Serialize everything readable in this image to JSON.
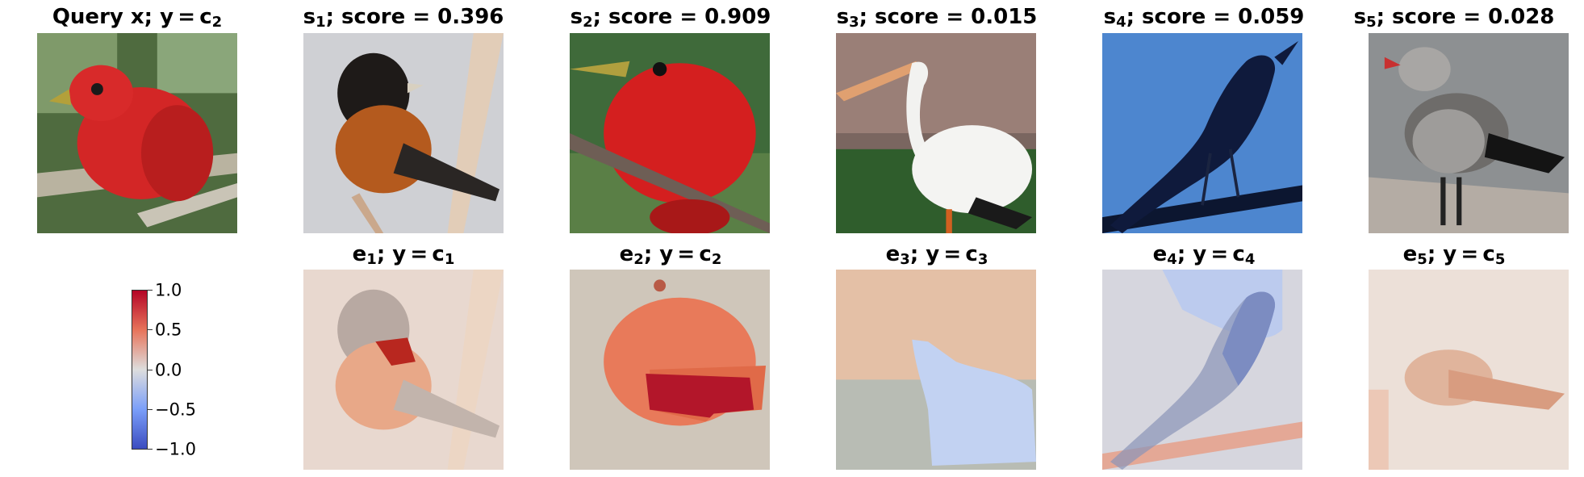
{
  "query": {
    "title_main": "Query x; y = c",
    "title_sub": "2"
  },
  "samples": [
    {
      "label": "s",
      "sub": "1",
      "score_text": "; score = 0.396",
      "score": 0.396,
      "subject": "black-orange oriole"
    },
    {
      "label": "s",
      "sub": "2",
      "score_text": "; score = 0.909",
      "score": 0.909,
      "subject": "red tanager"
    },
    {
      "label": "s",
      "sub": "3",
      "score_text": "; score = 0.015",
      "score": 0.015,
      "subject": "white pelican"
    },
    {
      "label": "s",
      "sub": "4",
      "score_text": "; score = 0.059",
      "score": 0.059,
      "subject": "black grackle"
    },
    {
      "label": "s",
      "sub": "5",
      "score_text": "; score = 0.028",
      "score": 0.028,
      "subject": "grey gull"
    }
  ],
  "explanations": [
    {
      "label": "e",
      "sub": "1",
      "class_text": "; y = c",
      "class_sub": "1"
    },
    {
      "label": "e",
      "sub": "2",
      "class_text": "; y = c",
      "class_sub": "2"
    },
    {
      "label": "e",
      "sub": "3",
      "class_text": "; y = c",
      "class_sub": "3"
    },
    {
      "label": "e",
      "sub": "4",
      "class_text": "; y = c",
      "class_sub": "4"
    },
    {
      "label": "e",
      "sub": "5",
      "class_text": "; y = c",
      "class_sub": "5"
    }
  ],
  "colorbar": {
    "ticks": [
      "1.0",
      "0.5",
      "0.0",
      "−0.5",
      "−1.0"
    ],
    "range": [
      -1.0,
      1.0
    ],
    "colormap": "coolwarm",
    "colors": {
      "high": "#b40426",
      "mid": "#dddddd",
      "low": "#3b4cc0"
    }
  }
}
